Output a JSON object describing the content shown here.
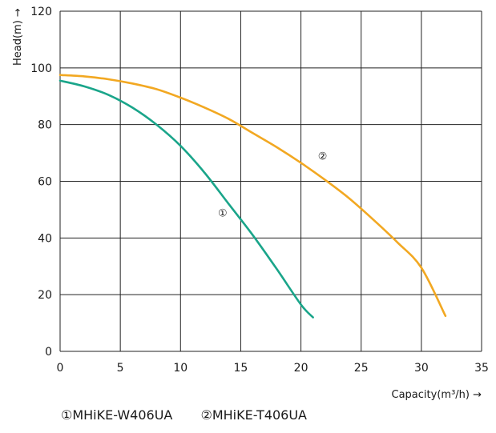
{
  "chart_data": {
    "type": "line",
    "xlabel": "Capacity(m³/h) →",
    "ylabel": "Head(m) →",
    "xlim": [
      0,
      35
    ],
    "ylim": [
      0,
      120
    ],
    "x_ticks": [
      0,
      5,
      10,
      15,
      20,
      25,
      30,
      35
    ],
    "y_ticks": [
      0,
      20,
      40,
      60,
      80,
      100,
      120
    ],
    "grid": true,
    "series": [
      {
        "name": "①MHiKE-W406UA",
        "marker": "①",
        "color": "#1aa58a",
        "x": [
          0,
          2,
          4,
          6,
          8,
          10,
          12,
          14,
          16,
          18,
          20,
          21
        ],
        "y": [
          95.5,
          93.5,
          90.5,
          86,
          80,
          72.5,
          63,
          52,
          41,
          29,
          16.5,
          12
        ]
      },
      {
        "name": "②MHiKE-T406UA",
        "marker": "②",
        "color": "#f2a822",
        "x": [
          0,
          2,
          4,
          6,
          8,
          10,
          12,
          14,
          16,
          18,
          20,
          22,
          24,
          26,
          28,
          30,
          32
        ],
        "y": [
          97.5,
          97,
          96,
          94.5,
          92.5,
          89.5,
          86,
          82,
          77,
          72,
          66.5,
          60.5,
          54,
          46.5,
          38.5,
          29.5,
          12.5
        ]
      }
    ]
  },
  "legend": {
    "item1": "①MHiKE-W406UA",
    "item2": "②MHiKE-T406UA"
  }
}
